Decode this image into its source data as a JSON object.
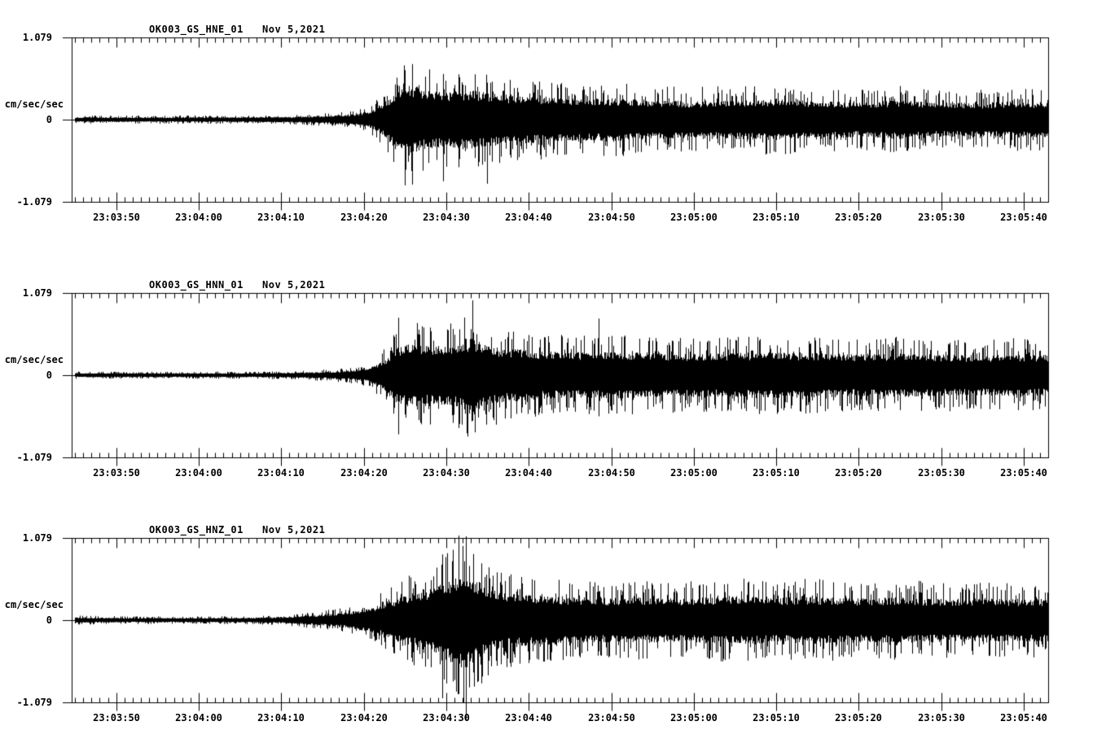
{
  "page": {
    "background": "#ffffff",
    "trace_color": "#000000",
    "description": "Three-channel strong-motion seismogram record section, station OK003, Nov 5 2021"
  },
  "chart_data": [
    {
      "type": "line",
      "kind": "seismogram",
      "title": "OK003_GS_HNE_01   Nov 5,2021",
      "station": "OK003_GS_HNE_01",
      "date": "Nov 5,2021",
      "ylabel": "cm/sec/sec",
      "ylim": [
        -1.079,
        1.079
      ],
      "yticks": [
        "1.079",
        "0",
        "-1.079"
      ],
      "xticks": [
        "23:03:50",
        "23:04:00",
        "23:04:10",
        "23:04:20",
        "23:04:30",
        "23:04:40",
        "23:04:50",
        "23:05:00",
        "23:05:10",
        "23:05:20",
        "23:05:30",
        "23:05:40"
      ],
      "x_major_interval_sec": 10,
      "x_minor_interval_sec": 1,
      "window_seconds": 118.4,
      "seconds_before_first_tick": 5.4,
      "grid": false,
      "legend": "none",
      "envelope_t_sec": [
        0,
        22,
        27,
        31,
        34,
        36,
        37.5,
        39,
        40.5,
        42.5,
        45,
        47,
        49,
        51,
        54,
        58,
        62,
        66,
        70,
        75,
        80,
        85,
        90,
        95,
        100,
        105,
        110,
        114,
        118.4
      ],
      "envelope_cm_s2": [
        0.049,
        0.049,
        0.058,
        0.076,
        0.108,
        0.151,
        0.302,
        0.54,
        0.734,
        0.626,
        0.561,
        0.604,
        0.593,
        0.54,
        0.496,
        0.453,
        0.421,
        0.442,
        0.399,
        0.378,
        0.399,
        0.421,
        0.378,
        0.356,
        0.399,
        0.356,
        0.345,
        0.378,
        0.356
      ],
      "peaks": [
        {
          "t": 40.4,
          "up": 0.647,
          "down": 0.863
        },
        {
          "t": 41.3,
          "up": 0.54,
          "down": 0.852
        },
        {
          "t": 45.0,
          "up": 0.54,
          "down": 0.809
        },
        {
          "t": 50.3,
          "up": 0.486,
          "down": 0.842
        }
      ]
    },
    {
      "type": "line",
      "kind": "seismogram",
      "title": "OK003_GS_HNN_01   Nov 5,2021",
      "station": "OK003_GS_HNN_01",
      "date": "Nov 5,2021",
      "ylabel": "cm/sec/sec",
      "ylim": [
        -1.079,
        1.079
      ],
      "yticks": [
        "1.079",
        "0",
        "-1.079"
      ],
      "xticks": [
        "23:03:50",
        "23:04:00",
        "23:04:10",
        "23:04:20",
        "23:04:30",
        "23:04:40",
        "23:04:50",
        "23:05:00",
        "23:05:10",
        "23:05:20",
        "23:05:30",
        "23:05:40"
      ],
      "x_major_interval_sec": 10,
      "x_minor_interval_sec": 1,
      "window_seconds": 118.4,
      "seconds_before_first_tick": 5.4,
      "grid": false,
      "legend": "none",
      "envelope_t_sec": [
        0,
        22,
        27,
        31,
        34,
        36,
        38,
        39.5,
        41,
        43,
        45,
        47,
        48.6,
        50,
        52,
        55,
        58,
        62,
        66,
        70,
        75,
        80,
        85,
        90,
        95,
        100,
        105,
        110,
        114,
        118.4
      ],
      "envelope_cm_s2": [
        0.043,
        0.043,
        0.052,
        0.07,
        0.097,
        0.14,
        0.324,
        0.593,
        0.647,
        0.593,
        0.615,
        0.647,
        0.777,
        0.626,
        0.561,
        0.518,
        0.486,
        0.464,
        0.486,
        0.453,
        0.432,
        0.453,
        0.475,
        0.453,
        0.432,
        0.453,
        0.432,
        0.41,
        0.432,
        0.421
      ],
      "peaks": [
        {
          "t": 39.6,
          "up": 0.755,
          "down": 0.777
        },
        {
          "t": 48.6,
          "up": 0.982,
          "down": 0.593
        },
        {
          "t": 63.9,
          "up": 0.744,
          "down": 0.54
        }
      ]
    },
    {
      "type": "line",
      "kind": "seismogram",
      "title": "OK003_GS_HNZ_01   Nov 5,2021",
      "station": "OK003_GS_HNZ_01",
      "date": "Nov 5,2021",
      "ylabel": "cm/sec/sec",
      "ylim": [
        -1.079,
        1.079
      ],
      "yticks": [
        "1.079",
        "0",
        "-1.079"
      ],
      "xticks": [
        "23:03:50",
        "23:04:00",
        "23:04:10",
        "23:04:20",
        "23:04:30",
        "23:04:40",
        "23:04:50",
        "23:05:00",
        "23:05:10",
        "23:05:20",
        "23:05:30",
        "23:05:40"
      ],
      "x_major_interval_sec": 10,
      "x_minor_interval_sec": 1,
      "window_seconds": 118.4,
      "seconds_before_first_tick": 5.4,
      "grid": false,
      "legend": "none",
      "envelope_t_sec": [
        0,
        5,
        15,
        22,
        26,
        30,
        33,
        36,
        38,
        40,
        42,
        44,
        46,
        47.5,
        49,
        51,
        53,
        56,
        60,
        64,
        68,
        72,
        76,
        80,
        85,
        90,
        95,
        100,
        105,
        110,
        114,
        118.4
      ],
      "envelope_cm_s2": [
        0.055,
        0.047,
        0.044,
        0.049,
        0.065,
        0.108,
        0.151,
        0.237,
        0.345,
        0.486,
        0.561,
        0.669,
        0.863,
        1.025,
        0.809,
        0.647,
        0.561,
        0.518,
        0.486,
        0.453,
        0.475,
        0.453,
        0.475,
        0.496,
        0.464,
        0.486,
        0.453,
        0.475,
        0.442,
        0.453,
        0.432,
        0.442
      ],
      "peaks": [
        {
          "t": 44.9,
          "up": 0.863,
          "down": 1.025
        },
        {
          "t": 46.9,
          "up": 1.111,
          "down": 0.971
        },
        {
          "t": 47.8,
          "up": 1.101,
          "down": 1.306
        }
      ]
    }
  ]
}
